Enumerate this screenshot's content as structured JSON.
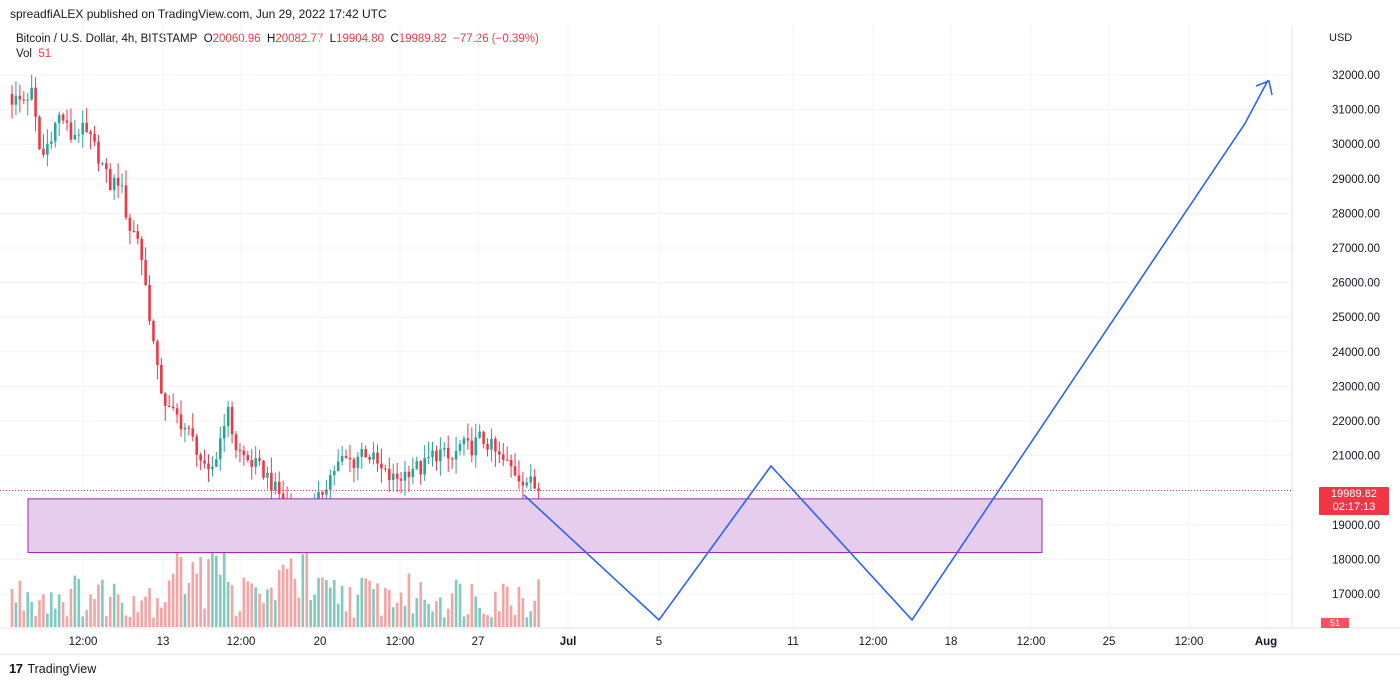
{
  "header": {
    "publisher_line": "spreadfiALEX published on TradingView.com, Jun 29, 2022 17:42 UTC"
  },
  "legend": {
    "symbol": "Bitcoin / U.S. Dollar, 4h, BITSTAMP",
    "open_label": "O",
    "open": "20060.96",
    "high_label": "H",
    "high": "20082.77",
    "low_label": "L",
    "low": "19904.80",
    "close_label": "C",
    "close": "19989.82",
    "change": "−77.26 (−0.39%)",
    "vol_label": "Vol",
    "vol_value": "51"
  },
  "price_axis": {
    "currency": "USD",
    "labels": [
      "32000.00",
      "31000.00",
      "30000.00",
      "29000.00",
      "28000.00",
      "27000.00",
      "26000.00",
      "25000.00",
      "24000.00",
      "23000.00",
      "22000.00",
      "21000.00",
      "19000.00",
      "18000.00",
      "17000.00"
    ]
  },
  "time_axis": {
    "labels": [
      "12:00",
      "13",
      "12:00",
      "20",
      "12:00",
      "27",
      "Jul",
      "5",
      "11",
      "12:00",
      "18",
      "12:00",
      "25",
      "12:00",
      "Aug"
    ]
  },
  "last_price_tag": {
    "price": "19989.82",
    "countdown": "02:17:13"
  },
  "volume_tag": "51",
  "colors": {
    "up": "#26a69a",
    "down": "#f23645",
    "up_vol": "#7fcbbf",
    "down_vol": "#f5a3a3",
    "projection": "#2962ff",
    "zone_fill": "#e6cdee",
    "zone_border": "#9c27b0"
  },
  "footer": {
    "brand": "TradingView"
  },
  "chart_data": {
    "type": "candlestick",
    "symbol": "Bitcoin / U.S. Dollar",
    "interval": "4h",
    "exchange": "BITSTAMP",
    "y_axis_unit": "USD",
    "ylim": [
      16250,
      32700
    ],
    "last_price": 19989.82,
    "close_path": [
      [
        0,
        31300
      ],
      [
        5,
        31250
      ],
      [
        10,
        31500
      ],
      [
        15,
        29500
      ],
      [
        20,
        30300
      ],
      [
        25,
        30900
      ],
      [
        30,
        30200
      ],
      [
        35,
        30450
      ],
      [
        40,
        30150
      ],
      [
        45,
        29600
      ],
      [
        50,
        28800
      ],
      [
        55,
        29000
      ],
      [
        60,
        27600
      ],
      [
        65,
        27300
      ],
      [
        70,
        25300
      ],
      [
        75,
        23200
      ],
      [
        80,
        22300
      ],
      [
        85,
        22100
      ],
      [
        90,
        21700
      ],
      [
        95,
        21200
      ],
      [
        100,
        20300
      ],
      [
        105,
        21000
      ],
      [
        110,
        22400
      ],
      [
        115,
        21200
      ],
      [
        120,
        20900
      ],
      [
        125,
        20700
      ],
      [
        130,
        20500
      ],
      [
        135,
        20000
      ],
      [
        140,
        19700
      ],
      [
        145,
        19100
      ],
      [
        150,
        18500
      ],
      [
        155,
        19400
      ],
      [
        160,
        20100
      ],
      [
        165,
        20600
      ],
      [
        170,
        20900
      ],
      [
        175,
        20800
      ],
      [
        180,
        21200
      ],
      [
        185,
        20900
      ],
      [
        190,
        20500
      ],
      [
        195,
        20300
      ],
      [
        200,
        20400
      ],
      [
        205,
        20700
      ],
      [
        210,
        20600
      ],
      [
        215,
        21000
      ],
      [
        220,
        21100
      ],
      [
        225,
        20800
      ],
      [
        230,
        21300
      ],
      [
        235,
        21200
      ],
      [
        240,
        21500
      ],
      [
        245,
        21300
      ],
      [
        250,
        20900
      ],
      [
        255,
        20700
      ],
      [
        260,
        20400
      ],
      [
        265,
        20250
      ],
      [
        270,
        19990
      ]
    ],
    "volume_range": [
      1,
      12
    ],
    "drawings": {
      "support_zone": {
        "price_top": 19750,
        "price_bottom": 18200
      },
      "projection_path": [
        {
          "time": "Jun 29",
          "price": 19860
        },
        {
          "time": "Jul 5",
          "price": 16250
        },
        {
          "time": "Jul 10",
          "price": 20700
        },
        {
          "time": "Jul 16",
          "price": 16250
        },
        {
          "time": "Jul 31",
          "price": 30600
        },
        {
          "time": "Aug 1",
          "price": 31850
        }
      ]
    }
  }
}
